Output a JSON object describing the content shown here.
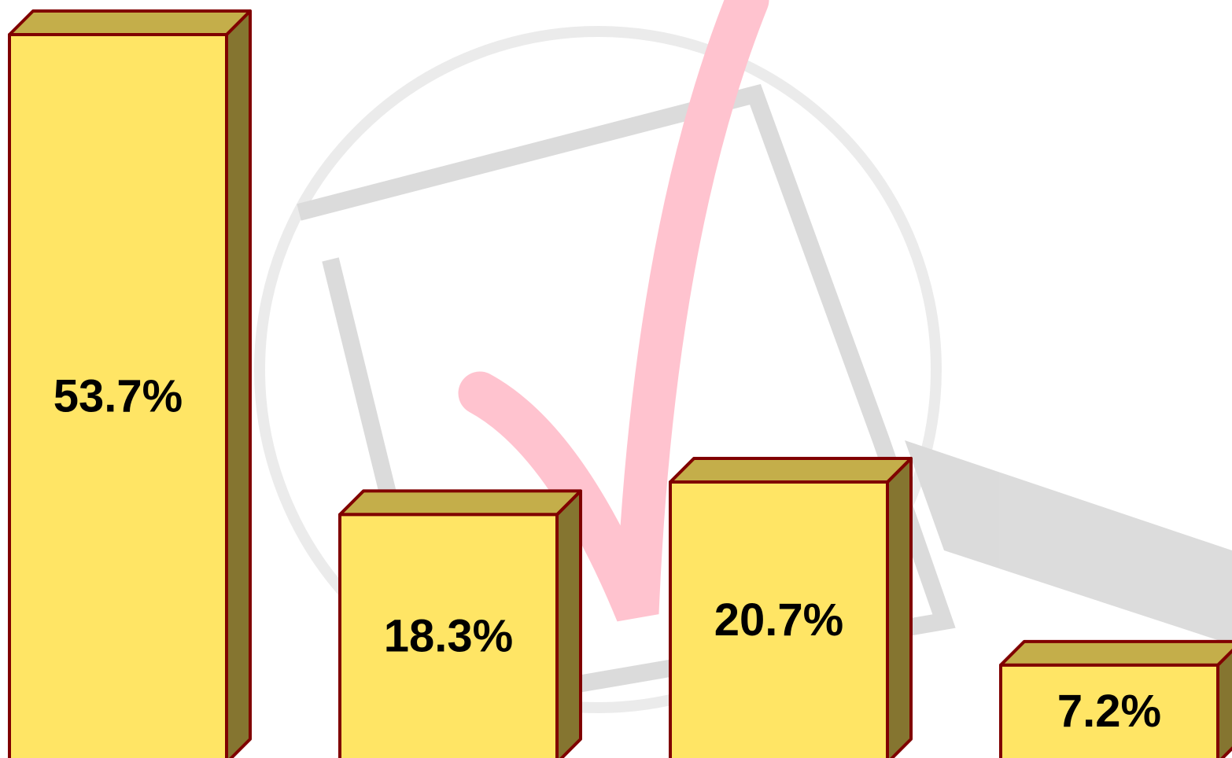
{
  "chart_data": {
    "type": "bar3d",
    "categories": [
      null,
      null,
      null,
      null
    ],
    "values": [
      53.7,
      18.3,
      20.7,
      7.2
    ],
    "value_labels": [
      "53.7%",
      "18.3%",
      "20.7%",
      "7.2%"
    ],
    "color": "#ffe565",
    "top_color": "#c4ae4a",
    "side_color": "#857530",
    "edge_color": "#800000"
  }
}
